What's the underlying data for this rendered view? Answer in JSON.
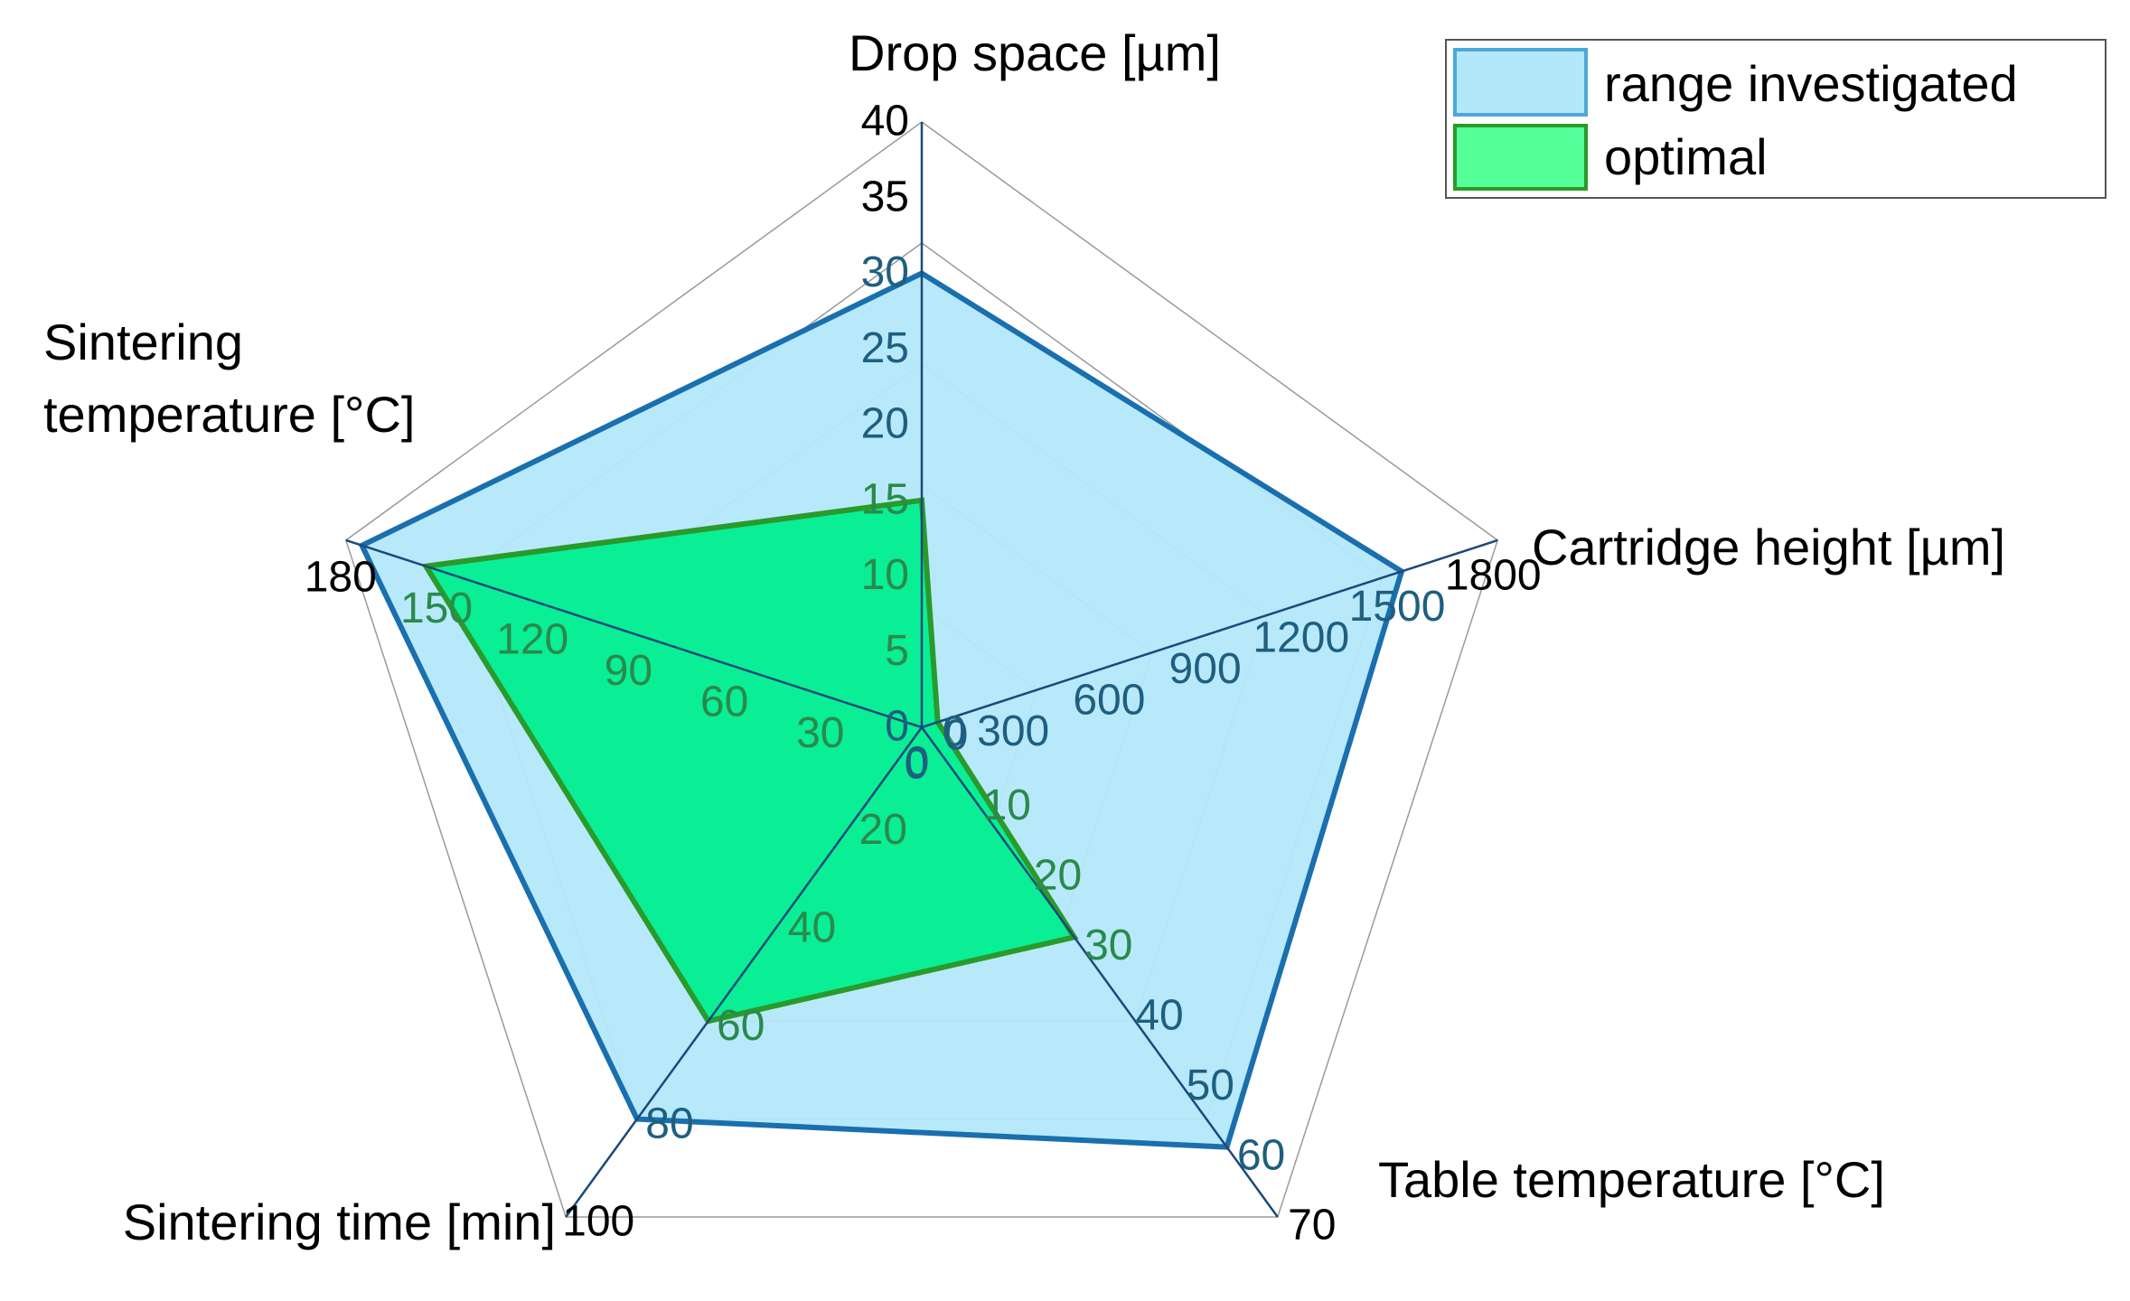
{
  "chart_data": {
    "type": "radar",
    "title": "",
    "axes": [
      {
        "label": "Drop space [µm]",
        "label_lines": [
          "Drop space [µm]"
        ],
        "max": 40,
        "ticks": [
          0,
          5,
          10,
          15,
          20,
          25,
          30,
          35,
          40
        ],
        "tick_labels": [
          "0",
          "5",
          "10",
          "15",
          "20",
          "25",
          "30",
          "35",
          "40"
        ]
      },
      {
        "label": "Cartridge height [µm]",
        "label_lines": [
          "Cartridge height [µm]"
        ],
        "max": 1800,
        "ticks": [
          0,
          300,
          600,
          900,
          1200,
          1500,
          1800
        ],
        "tick_labels": [
          "0",
          "300",
          "600",
          "900",
          "1200",
          "1500",
          "1800"
        ]
      },
      {
        "label": "Table temperature [°C]",
        "label_lines": [
          "Table temperature [°C]"
        ],
        "max": 70,
        "ticks": [
          0,
          10,
          20,
          30,
          40,
          50,
          60,
          70
        ],
        "tick_labels": [
          "0",
          "10",
          "20",
          "30",
          "40",
          "50",
          "60",
          "70"
        ]
      },
      {
        "label": "Sintering time [min]",
        "label_lines": [
          "Sintering time [min]"
        ],
        "max": 100,
        "ticks": [
          0,
          20,
          40,
          60,
          80,
          100
        ],
        "tick_labels": [
          "0",
          "20",
          "40",
          "60",
          "80",
          "100"
        ]
      },
      {
        "label": "Sintering temperature [°C]",
        "label_lines": [
          "Sintering",
          "temperature [°C]"
        ],
        "max": 180,
        "ticks": [
          0,
          30,
          60,
          90,
          120,
          150,
          180
        ],
        "tick_labels": [
          "0",
          "30",
          "60",
          "90",
          "120",
          "150",
          "180"
        ]
      }
    ],
    "series": [
      {
        "name": "range investigated",
        "values": [
          30,
          1500,
          60,
          80,
          175
        ],
        "fill": "#b3e8fb",
        "stroke": "#1a6fae"
      },
      {
        "name": "optimal",
        "values": [
          15,
          50,
          30,
          60,
          155
        ],
        "fill": "#00ee90",
        "stroke": "#2a9a2a"
      }
    ],
    "legend_position": "top-right",
    "grid": true
  }
}
